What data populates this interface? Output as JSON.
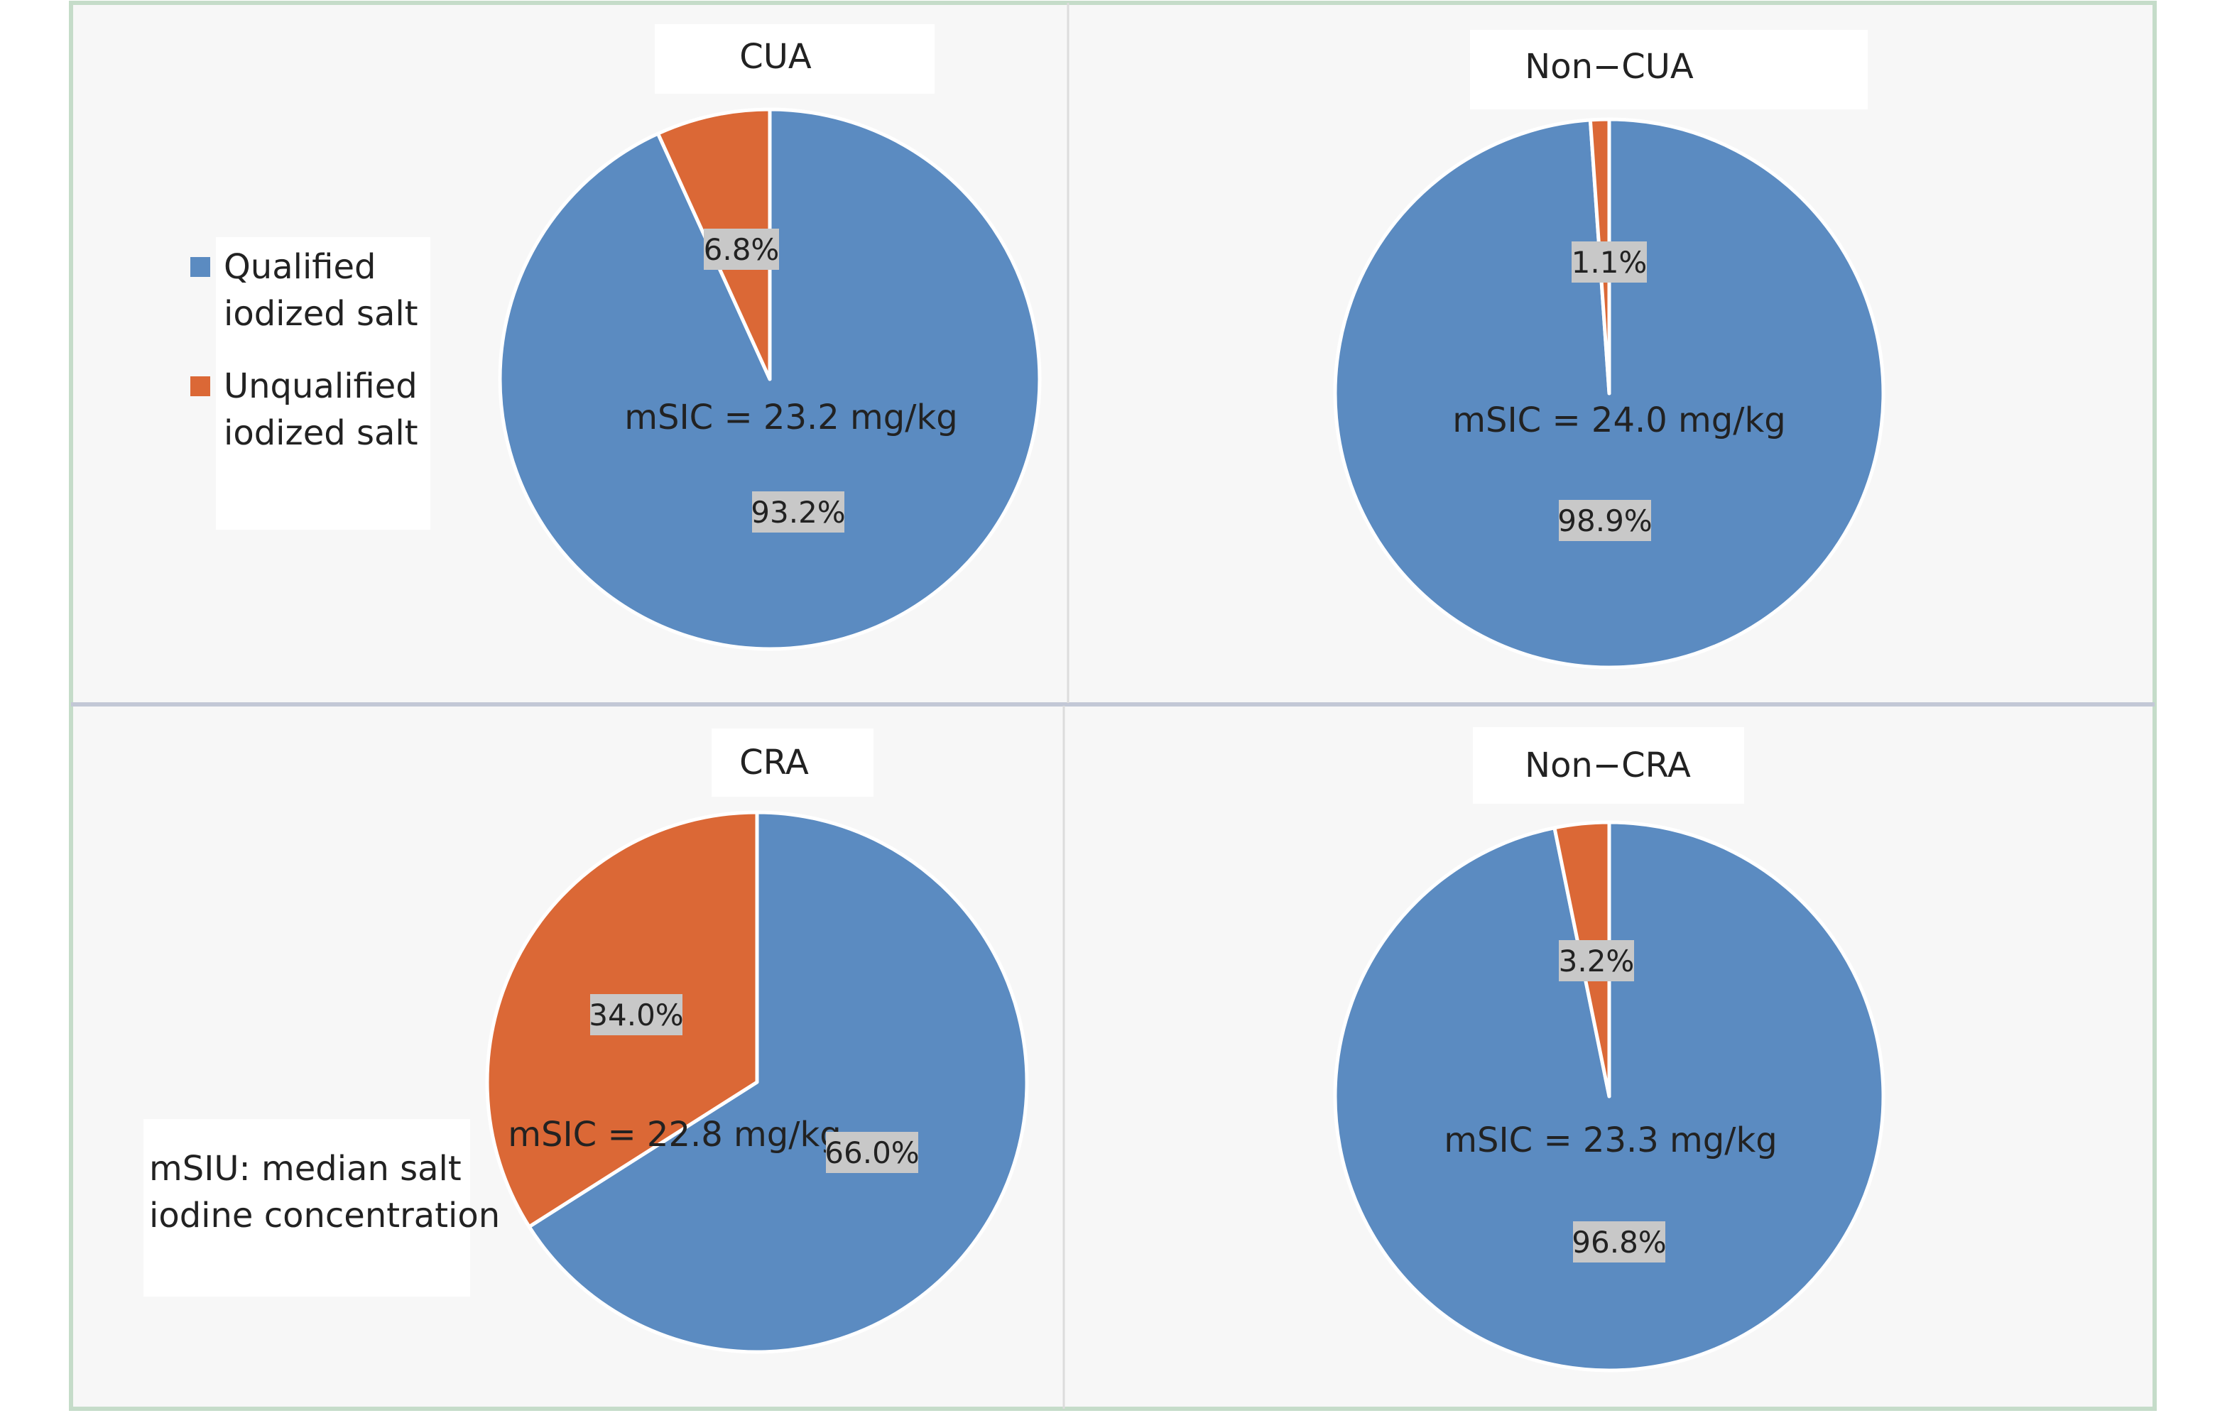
{
  "legend": {
    "items": [
      {
        "label_line1": "Qualified",
        "label_line2": "iodized salt",
        "color": "#5b8bc1"
      },
      {
        "label_line1": "Unqualified",
        "label_line2": "iodized salt",
        "color": "#db6836"
      }
    ]
  },
  "note": {
    "line1": "mSIU: median salt",
    "line2": "iodine concentration"
  },
  "chart_data": [
    {
      "type": "pie",
      "title": "CUA",
      "annotation": "mSIC = 23.2 mg/kg",
      "slices": [
        {
          "name": "Qualified iodized salt",
          "value": 93.2,
          "label": "93.2%",
          "color": "#5b8bc1"
        },
        {
          "name": "Unqualified iodized salt",
          "value": 6.8,
          "label": "6.8%",
          "color": "#db6836"
        }
      ]
    },
    {
      "type": "pie",
      "title": "Non−CUA",
      "annotation": "mSIC = 24.0 mg/kg",
      "slices": [
        {
          "name": "Qualified iodized salt",
          "value": 98.9,
          "label": "98.9%",
          "color": "#5b8bc1"
        },
        {
          "name": "Unqualified iodized salt",
          "value": 1.1,
          "label": "1.1%",
          "color": "#db6836"
        }
      ]
    },
    {
      "type": "pie",
      "title": "CRA",
      "annotation": "mSIC = 22.8 mg/kg",
      "slices": [
        {
          "name": "Qualified iodized salt",
          "value": 66.0,
          "label": "66.0%",
          "color": "#5b8bc1"
        },
        {
          "name": "Unqualified iodized salt",
          "value": 34.0,
          "label": "34.0%",
          "color": "#db6836"
        }
      ]
    },
    {
      "type": "pie",
      "title": "Non−CRA",
      "annotation": "mSIC = 23.3 mg/kg",
      "slices": [
        {
          "name": "Qualified iodized salt",
          "value": 96.8,
          "label": "96.8%",
          "color": "#5b8bc1"
        },
        {
          "name": "Unqualified iodized salt",
          "value": 3.2,
          "label": "3.2%",
          "color": "#db6836"
        }
      ]
    }
  ]
}
